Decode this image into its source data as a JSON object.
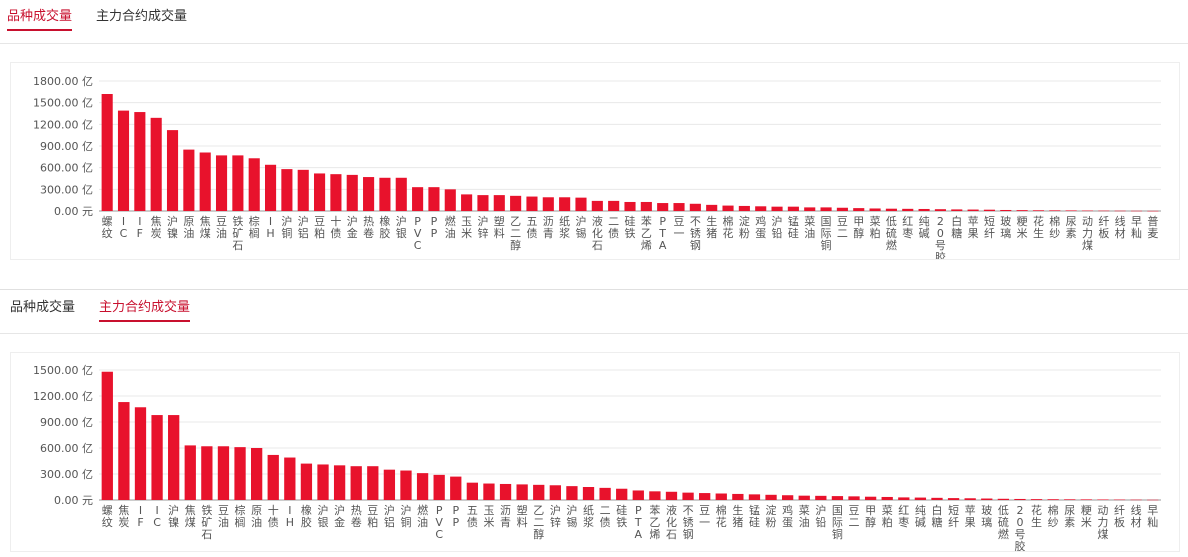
{
  "top_tabs": {
    "tab1": "品种成交量",
    "tab2": "主力合约成交量",
    "active": 1
  },
  "bottom_tabs": {
    "tab1": "品种成交量",
    "tab2": "主力合约成交量",
    "active": 2
  },
  "bar_color": "#e8122c",
  "chart_data": [
    {
      "type": "bar",
      "ylim": [
        0,
        1800
      ],
      "yticks": [
        "0.00 元",
        "300.00 亿",
        "600.00 亿",
        "900.00 亿",
        "1200.00 亿",
        "1500.00 亿",
        "1800.00 亿"
      ],
      "categories": [
        "螺纹",
        "IC",
        "IF",
        "焦炭",
        "沪镍",
        "原油",
        "焦煤",
        "豆油",
        "铁矿石",
        "棕榈",
        "IH",
        "沪铜",
        "沪铝",
        "豆粕",
        "十债",
        "沪金",
        "热卷",
        "橡胶",
        "沪银",
        "PVC",
        "PP",
        "燃油",
        "玉米",
        "沪锌",
        "塑料",
        "乙二醇",
        "五债",
        "沥青",
        "纸浆",
        "沪锡",
        "液化石",
        "二债",
        "硅铁",
        "苯乙烯",
        "PTA",
        "豆一",
        "不锈钢",
        "生猪",
        "棉花",
        "淀粉",
        "鸡蛋",
        "沪铅",
        "锰硅",
        "菜油",
        "国际铜",
        "豆二",
        "甲醇",
        "菜粕",
        "低硫燃",
        "红枣",
        "纯碱",
        "20号胶",
        "白糖",
        "苹果",
        "短纤",
        "玻璃",
        "粳米",
        "花生",
        "棉纱",
        "尿素",
        "动力煤",
        "纤板",
        "线材",
        "早籼",
        "普麦"
      ],
      "values": [
        1620,
        1390,
        1370,
        1290,
        1120,
        850,
        810,
        770,
        770,
        730,
        640,
        580,
        570,
        520,
        510,
        500,
        470,
        460,
        460,
        330,
        330,
        300,
        230,
        220,
        220,
        210,
        200,
        190,
        190,
        185,
        140,
        140,
        125,
        125,
        110,
        110,
        100,
        85,
        75,
        70,
        65,
        60,
        60,
        50,
        50,
        45,
        40,
        35,
        32,
        30,
        28,
        25,
        22,
        20,
        18,
        14,
        12,
        10,
        9,
        8,
        6,
        5,
        4,
        3,
        2
      ]
    },
    {
      "type": "bar",
      "ylim": [
        0,
        1500
      ],
      "yticks": [
        "0.00 元",
        "300.00 亿",
        "600.00 亿",
        "900.00 亿",
        "1200.00 亿",
        "1500.00 亿"
      ],
      "categories": [
        "螺纹",
        "焦炭",
        "IF",
        "IC",
        "沪镍",
        "焦煤",
        "铁矿石",
        "豆油",
        "棕榈",
        "原油",
        "十债",
        "IH",
        "橡胶",
        "沪银",
        "沪金",
        "热卷",
        "豆粕",
        "沪铝",
        "沪铜",
        "燃油",
        "PVC",
        "PP",
        "五债",
        "玉米",
        "沥青",
        "塑料",
        "乙二醇",
        "沪锌",
        "沪锡",
        "纸浆",
        "二债",
        "硅铁",
        "PTA",
        "苯乙烯",
        "液化石",
        "不锈钢",
        "豆一",
        "棉花",
        "生猪",
        "锰硅",
        "淀粉",
        "鸡蛋",
        "菜油",
        "沪铅",
        "国际铜",
        "豆二",
        "甲醇",
        "菜粕",
        "红枣",
        "纯碱",
        "白糖",
        "短纤",
        "苹果",
        "玻璃",
        "低硫燃",
        "20号胶",
        "花生",
        "棉纱",
        "尿素",
        "粳米",
        "动力煤",
        "纤板",
        "线材",
        "早籼"
      ],
      "values": [
        1480,
        1130,
        1070,
        980,
        980,
        630,
        620,
        620,
        610,
        600,
        520,
        490,
        420,
        410,
        400,
        390,
        390,
        350,
        340,
        310,
        290,
        270,
        200,
        190,
        185,
        180,
        175,
        170,
        160,
        150,
        140,
        130,
        110,
        100,
        95,
        85,
        80,
        75,
        70,
        65,
        60,
        55,
        50,
        48,
        45,
        42,
        38,
        35,
        30,
        28,
        25,
        22,
        20,
        17,
        14,
        12,
        10,
        9,
        8,
        7,
        6,
        5,
        4,
        3
      ]
    }
  ]
}
